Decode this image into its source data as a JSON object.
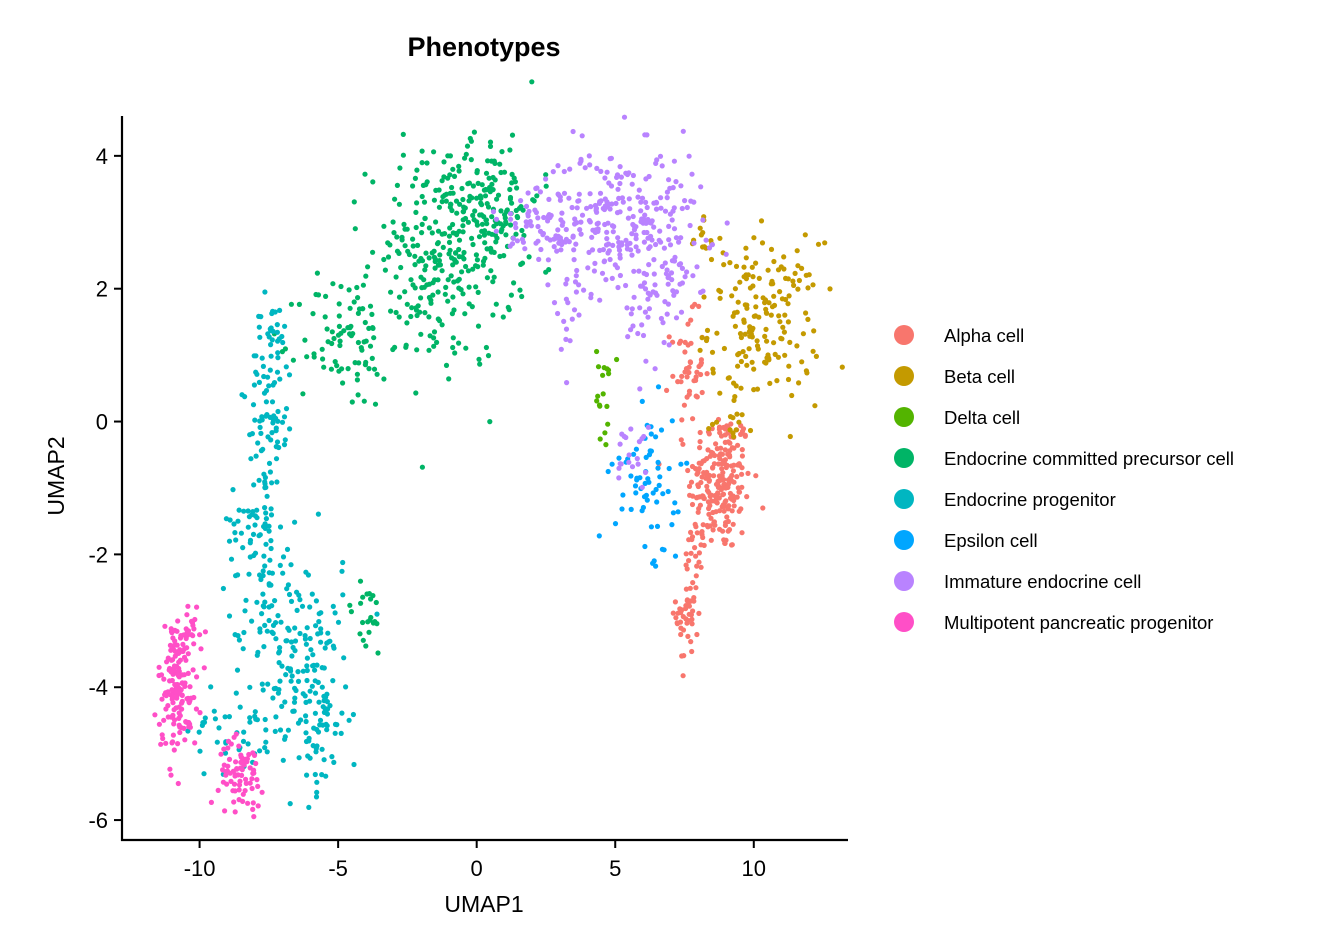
{
  "chart_data": {
    "type": "scatter",
    "title": "Phenotypes",
    "xlabel": "UMAP1",
    "ylabel": "UMAP2",
    "xlim": [
      -12.8,
      13.4
    ],
    "ylim": [
      -6.3,
      4.6
    ],
    "xticks": [
      -10,
      -5,
      0,
      5,
      10
    ],
    "yticks": [
      -6,
      -4,
      -2,
      0,
      2,
      4
    ],
    "xtick_labels": [
      "-10",
      "-5",
      "0",
      "5",
      "10"
    ],
    "ytick_labels": [
      "-6",
      "-4",
      "-2",
      "0",
      "2",
      "4"
    ],
    "grid": false,
    "legend_position": "right",
    "series": [
      {
        "name": "Alpha cell",
        "color": "#F8766D",
        "clusters": [
          {
            "cx": 8.8,
            "cy": -0.9,
            "sx": 0.55,
            "sy": 0.55,
            "n": 220
          },
          {
            "cx": 7.6,
            "cy": 0.8,
            "sx": 0.3,
            "sy": 0.4,
            "n": 45
          },
          {
            "cx": 7.6,
            "cy": -2.9,
            "sx": 0.2,
            "sy": 0.4,
            "n": 45
          },
          {
            "cx": 7.9,
            "cy": -1.7,
            "sx": 0.25,
            "sy": 0.4,
            "n": 20
          }
        ]
      },
      {
        "name": "Beta cell",
        "color": "#C49A00",
        "clusters": [
          {
            "cx": 10.4,
            "cy": 1.5,
            "sx": 1.0,
            "sy": 0.6,
            "n": 170
          },
          {
            "cx": 8.2,
            "cy": 2.7,
            "sx": 0.3,
            "sy": 0.3,
            "n": 15
          },
          {
            "cx": 9.2,
            "cy": 0.2,
            "sx": 0.4,
            "sy": 0.3,
            "n": 15
          }
        ]
      },
      {
        "name": "Delta cell",
        "color": "#53B400",
        "clusters": [
          {
            "cx": 4.6,
            "cy": 0.4,
            "sx": 0.15,
            "sy": 0.4,
            "n": 18
          }
        ]
      },
      {
        "name": "Endocrine committed precursor cell",
        "color": "#00B466",
        "clusters": [
          {
            "cx": -1.3,
            "cy": 2.4,
            "sx": 1.3,
            "sy": 0.8,
            "n": 280
          },
          {
            "cx": 0.5,
            "cy": 3.4,
            "sx": 0.9,
            "sy": 0.5,
            "n": 120
          },
          {
            "cx": -4.8,
            "cy": 1.2,
            "sx": 0.8,
            "sy": 0.5,
            "n": 80
          },
          {
            "cx": -4.0,
            "cy": -3.0,
            "sx": 0.4,
            "sy": 0.3,
            "n": 22
          }
        ]
      },
      {
        "name": "Endocrine progenitor",
        "color": "#00B6C1",
        "clusters": [
          {
            "cx": -7.4,
            "cy": 0.5,
            "sx": 0.4,
            "sy": 0.7,
            "n": 90
          },
          {
            "cx": -7.9,
            "cy": -1.5,
            "sx": 0.5,
            "sy": 0.6,
            "n": 70
          },
          {
            "cx": -6.8,
            "cy": -3.2,
            "sx": 1.0,
            "sy": 0.7,
            "n": 130
          },
          {
            "cx": -5.8,
            "cy": -4.4,
            "sx": 0.6,
            "sy": 0.6,
            "n": 90
          },
          {
            "cx": -8.6,
            "cy": -4.6,
            "sx": 0.9,
            "sy": 0.4,
            "n": 40
          }
        ]
      },
      {
        "name": "Epsilon cell",
        "color": "#00A6FF",
        "clusters": [
          {
            "cx": 6.2,
            "cy": -0.8,
            "sx": 0.6,
            "sy": 0.5,
            "n": 60
          },
          {
            "cx": 6.6,
            "cy": -2.0,
            "sx": 0.2,
            "sy": 0.3,
            "n": 6
          }
        ]
      },
      {
        "name": "Immature endocrine cell",
        "color": "#B983FF",
        "clusters": [
          {
            "cx": 5.2,
            "cy": 3.0,
            "sx": 1.5,
            "sy": 0.55,
            "n": 280
          },
          {
            "cx": 2.2,
            "cy": 2.9,
            "sx": 0.8,
            "sy": 0.4,
            "n": 60
          },
          {
            "cx": 6.6,
            "cy": 1.8,
            "sx": 0.6,
            "sy": 0.5,
            "n": 50
          },
          {
            "cx": 3.4,
            "cy": 1.4,
            "sx": 0.25,
            "sy": 0.4,
            "n": 12
          },
          {
            "cx": 5.6,
            "cy": -0.4,
            "sx": 0.3,
            "sy": 0.3,
            "n": 20
          }
        ]
      },
      {
        "name": "Multipotent pancreatic progenitor",
        "color": "#FF4FC7",
        "clusters": [
          {
            "cx": -10.8,
            "cy": -4.0,
            "sx": 0.35,
            "sy": 0.5,
            "n": 150
          },
          {
            "cx": -8.5,
            "cy": -5.3,
            "sx": 0.4,
            "sy": 0.25,
            "n": 75
          },
          {
            "cx": -10.3,
            "cy": -3.1,
            "sx": 0.3,
            "sy": 0.2,
            "n": 20
          }
        ]
      }
    ]
  }
}
